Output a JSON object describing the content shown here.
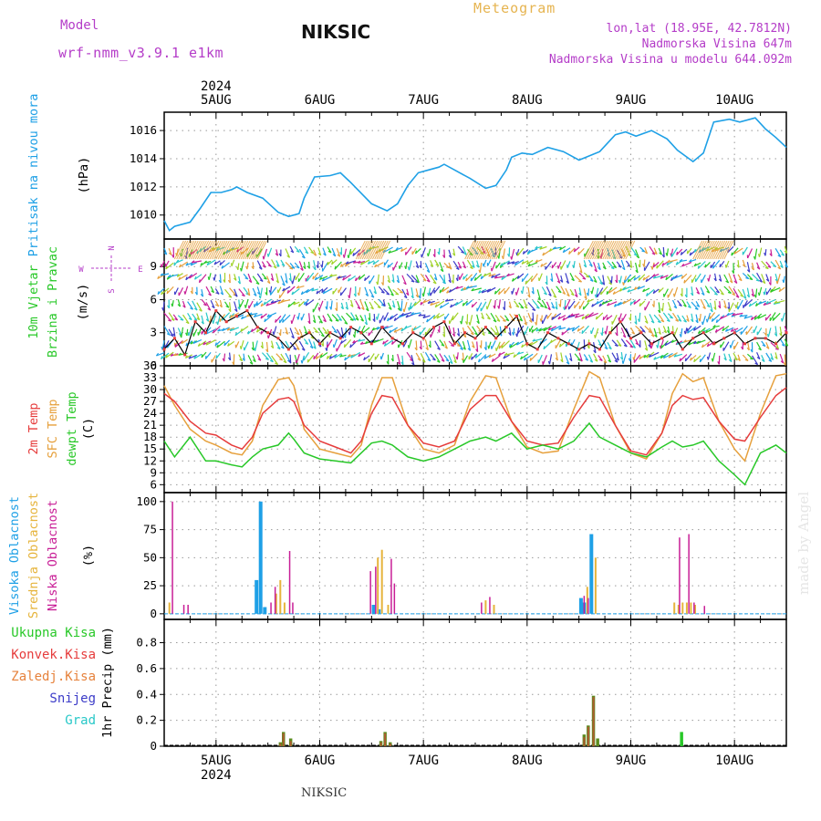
{
  "header": {
    "model_label": "Model",
    "model_name": "wrf-nmm_v3.9.1 e1km",
    "station": "NIKSIC",
    "title": "Meteogram",
    "lonlat": "lon,lat (18.95E, 42.7812N)",
    "elevation": "Nadmorska Visina 647m",
    "model_elevation": "Nadmorska Visina u modelu 644.092m",
    "watermark": "made by Angel",
    "footer": "NIKSIC"
  },
  "time_axis": {
    "year": "2024",
    "day_labels": [
      "5AUG",
      "6AUG",
      "7AUG",
      "8AUG",
      "9AUG",
      "10AUG"
    ],
    "start_day": 4.5,
    "end_day": 10.5
  },
  "colors": {
    "pressure": "#1ea0e6",
    "temp2m": "#e63c3c",
    "sfc": "#e6a03c",
    "dewpt": "#28c828",
    "high_cloud": "#1ea0e6",
    "mid_cloud": "#e6b43c",
    "low_cloud": "#c81e96",
    "precip_total": "#28c828",
    "precip_conv": "#e63c3c",
    "precip_frozen": "#e6823c",
    "snow": "#3c3cc8",
    "hail": "#28c8c8",
    "title_purple": "#b43cc8",
    "title_orange": "#e6b450"
  },
  "chart_data": [
    {
      "type": "line",
      "panel": "pressure",
      "ylabel": [
        "Pritisak na nivou mora",
        "(hPa)"
      ],
      "yticks": [
        1010,
        1012,
        1014,
        1016
      ],
      "ylim": [
        1008.3,
        1017.3
      ],
      "grid": true,
      "series": [
        {
          "x": [
            4.5,
            4.55,
            4.6,
            4.75,
            4.85,
            4.95,
            5.05,
            5.15,
            5.2,
            5.3,
            5.45,
            5.6,
            5.7,
            5.8,
            5.85,
            5.95,
            6.1,
            6.2,
            6.3,
            6.5,
            6.65,
            6.75,
            6.85,
            6.95,
            7.05,
            7.15,
            7.2,
            7.3,
            7.45,
            7.6,
            7.7,
            7.8,
            7.85,
            7.95,
            8.05,
            8.2,
            8.35,
            8.5,
            8.6,
            8.7,
            8.85,
            8.95,
            9.05,
            9.2,
            9.35,
            9.45,
            9.6,
            9.7,
            9.8,
            9.95,
            10.05,
            10.2,
            10.3,
            10.4,
            10.5
          ],
          "values": [
            1009.6,
            1008.9,
            1009.2,
            1009.5,
            1010.5,
            1011.6,
            1011.6,
            1011.8,
            1012.0,
            1011.6,
            1011.2,
            1010.2,
            1009.9,
            1010.1,
            1011.2,
            1012.7,
            1012.8,
            1013.0,
            1012.3,
            1010.8,
            1010.3,
            1010.8,
            1012.1,
            1013.0,
            1013.2,
            1013.4,
            1013.6,
            1013.2,
            1012.6,
            1011.9,
            1012.1,
            1013.2,
            1014.1,
            1014.4,
            1014.3,
            1014.8,
            1014.5,
            1013.9,
            1014.2,
            1014.5,
            1015.7,
            1015.9,
            1015.6,
            1016.0,
            1015.4,
            1014.6,
            1013.8,
            1014.4,
            1016.6,
            1016.8,
            1016.6,
            1016.9,
            1016.1,
            1015.5,
            1014.8
          ]
        }
      ]
    },
    {
      "type": "scatter",
      "panel": "wind",
      "ylabel": [
        "10m Vjetar",
        "Brzina i Pravac",
        "(m/s)"
      ],
      "compass": {
        "n": "N",
        "s": "S",
        "e": "E",
        "w": "W"
      },
      "yticks": [
        0,
        3,
        6,
        9
      ],
      "ylim": [
        0,
        11.5
      ],
      "grid": true,
      "series": [
        {
          "name": "speed",
          "x": [
            4.5,
            4.6,
            4.7,
            4.8,
            4.9,
            5.0,
            5.1,
            5.2,
            5.3,
            5.4,
            5.5,
            5.6,
            5.7,
            5.8,
            5.9,
            6.0,
            6.1,
            6.2,
            6.3,
            6.4,
            6.5,
            6.6,
            6.7,
            6.8,
            6.9,
            7.0,
            7.1,
            7.2,
            7.3,
            7.4,
            7.5,
            7.6,
            7.7,
            7.8,
            7.9,
            8.0,
            8.1,
            8.2,
            8.3,
            8.4,
            8.5,
            8.6,
            8.7,
            8.8,
            8.9,
            9.0,
            9.1,
            9.2,
            9.3,
            9.4,
            9.5,
            9.6,
            9.7,
            9.8,
            9.9,
            10.0,
            10.1,
            10.2,
            10.3,
            10.4,
            10.5
          ],
          "values": [
            1.5,
            2.5,
            1.0,
            4.0,
            3.0,
            5.0,
            4.0,
            4.5,
            5.0,
            3.5,
            3.0,
            2.5,
            1.5,
            2.5,
            3.0,
            2.0,
            3.0,
            2.5,
            3.5,
            3.0,
            2.0,
            3.5,
            2.5,
            2.0,
            3.0,
            2.5,
            3.5,
            4.0,
            2.0,
            3.0,
            2.5,
            3.5,
            2.5,
            3.5,
            4.5,
            2.0,
            1.5,
            3.0,
            2.5,
            2.0,
            1.5,
            2.0,
            1.5,
            3.0,
            4.0,
            2.5,
            3.0,
            2.0,
            2.5,
            3.0,
            1.5,
            2.5,
            3.0,
            2.0,
            2.5,
            3.0,
            2.0,
            2.5,
            2.5,
            2.0,
            3.0
          ]
        }
      ]
    },
    {
      "type": "line",
      "panel": "temperature",
      "ylabel": [
        "2m Temp",
        "SFC Temp",
        "dewpt Temp",
        "(C)"
      ],
      "yticks": [
        6,
        9,
        12,
        15,
        18,
        21,
        24,
        27,
        30,
        33,
        36
      ],
      "ylim": [
        4,
        36
      ],
      "grid": true,
      "x": [
        4.5,
        4.6,
        4.75,
        4.9,
        5.0,
        5.15,
        5.25,
        5.35,
        5.45,
        5.6,
        5.7,
        5.75,
        5.85,
        6.0,
        6.15,
        6.3,
        6.4,
        6.5,
        6.6,
        6.7,
        6.85,
        7.0,
        7.15,
        7.3,
        7.45,
        7.6,
        7.7,
        7.85,
        8.0,
        8.15,
        8.3,
        8.45,
        8.6,
        8.7,
        8.85,
        9.0,
        9.15,
        9.3,
        9.4,
        9.5,
        9.6,
        9.7,
        9.85,
        10.0,
        10.1,
        10.25,
        10.4,
        10.5
      ],
      "series": [
        {
          "name": "2m Temp",
          "values": [
            29,
            27,
            22,
            19,
            18.5,
            16,
            15,
            18,
            24,
            27.5,
            28,
            27,
            21,
            17,
            15.5,
            14,
            17,
            24,
            28.5,
            28,
            21,
            16.5,
            15.5,
            17,
            25,
            28.5,
            28.5,
            22,
            17,
            16,
            16.5,
            23,
            28.5,
            28,
            21,
            14.5,
            13.5,
            19,
            26,
            28.5,
            27.5,
            28,
            22,
            17.5,
            17,
            23,
            28.5,
            30.5
          ]
        },
        {
          "name": "SFC Temp",
          "values": [
            31,
            26,
            20,
            17,
            16,
            14,
            13.5,
            17,
            26,
            32.5,
            33,
            31,
            20,
            15,
            14,
            13,
            16,
            26,
            33,
            33,
            21,
            15,
            14,
            16,
            27,
            33.5,
            33,
            22,
            15.5,
            14,
            14.5,
            25,
            34.5,
            33,
            21,
            14,
            12.5,
            19,
            29,
            34,
            32,
            33,
            22,
            15,
            12,
            24,
            33.5,
            34
          ]
        },
        {
          "name": "dewpt Temp",
          "values": [
            17,
            13,
            18,
            12,
            12,
            11,
            10.5,
            13,
            15,
            16,
            19,
            17.5,
            14,
            12.5,
            12,
            11.5,
            14,
            16.5,
            17,
            16,
            13,
            12,
            13,
            15,
            17,
            18,
            17,
            19,
            15,
            16,
            15,
            17,
            21.5,
            18,
            16,
            14,
            13,
            15.5,
            17,
            15.5,
            16,
            17,
            12,
            8.5,
            6,
            14,
            16,
            14
          ]
        }
      ]
    },
    {
      "type": "bar",
      "panel": "clouds",
      "ylabel": [
        "Visoka Oblacnost",
        "Srednja Oblacnost",
        "Niska Oblacnost",
        "(%)"
      ],
      "yticks": [
        0,
        25,
        50,
        75,
        100
      ],
      "ylim": [
        -5,
        108
      ],
      "grid": true,
      "series": [
        {
          "name": "Visoka Oblacnost",
          "x": [
            5.39,
            5.43,
            5.47,
            6.52,
            6.57,
            8.52,
            8.55,
            8.62
          ],
          "values": [
            30,
            100,
            6,
            8,
            4,
            14,
            10,
            71
          ]
        },
        {
          "name": "Srednja Oblacnost",
          "x": [
            4.55,
            5.58,
            5.62,
            5.66,
            6.56,
            6.6,
            6.66,
            7.6,
            7.68,
            8.58,
            8.66,
            9.42,
            9.46,
            9.5,
            9.54,
            9.58,
            9.62
          ],
          "values": [
            10,
            18,
            30,
            10,
            50,
            57,
            8,
            12,
            8,
            24,
            50,
            10,
            8,
            10,
            10,
            10,
            8
          ]
        },
        {
          "name": "Niska Oblacnost",
          "x": [
            4.58,
            4.69,
            4.73,
            5.53,
            5.57,
            5.71,
            5.74,
            6.49,
            6.54,
            6.69,
            6.72,
            7.56,
            7.64,
            8.55,
            8.59,
            9.47,
            9.56,
            9.61,
            9.71
          ],
          "values": [
            100,
            8,
            8,
            10,
            24,
            56,
            10,
            38,
            42,
            49,
            27,
            10,
            15,
            16,
            14,
            68,
            71,
            10,
            7
          ]
        }
      ]
    },
    {
      "type": "bar",
      "panel": "precip",
      "ylabel": [
        "1hr Precip (mm)"
      ],
      "legend": [
        "Ukupna Kisa",
        "Konvek.Kisa",
        "Zaledj.Kisa",
        "Snijeg",
        "Grad"
      ],
      "yticks": [
        0,
        0.2,
        0.4,
        0.6,
        0.8
      ],
      "ylim": [
        0,
        0.98
      ],
      "grid": true,
      "series": [
        {
          "name": "Ukupna Kisa",
          "x": [
            5.62,
            5.65,
            5.72,
            6.59,
            6.63,
            6.68,
            8.55,
            8.59,
            8.64,
            8.68,
            9.49
          ],
          "values": [
            0.03,
            0.11,
            0.06,
            0.04,
            0.11,
            0.03,
            0.09,
            0.16,
            0.39,
            0.06,
            0.11
          ]
        },
        {
          "name": "Konvek.Kisa",
          "x": [
            5.62,
            5.65,
            5.72,
            6.59,
            6.63,
            6.68,
            8.55,
            8.59,
            8.64
          ],
          "values": [
            0.02,
            0.1,
            0.04,
            0.03,
            0.1,
            0.02,
            0.07,
            0.15,
            0.38
          ]
        }
      ]
    }
  ]
}
